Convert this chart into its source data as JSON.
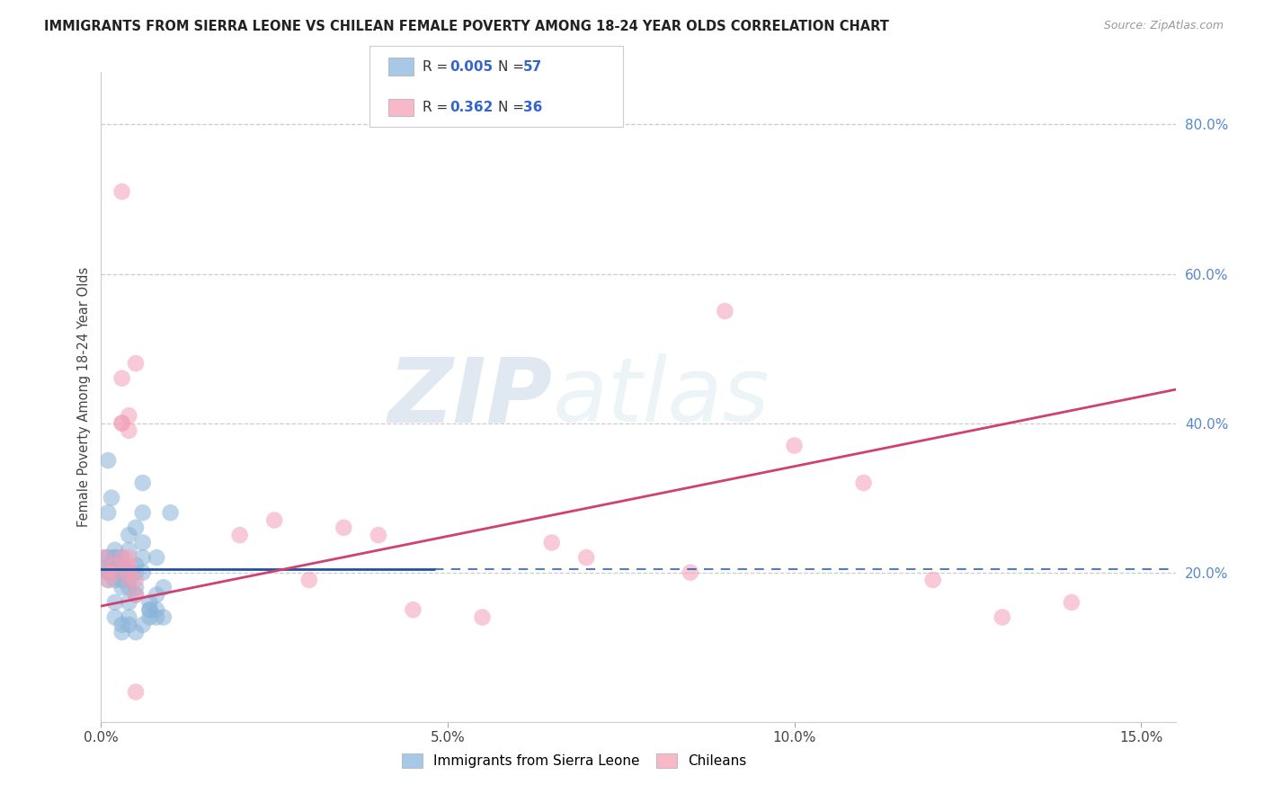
{
  "title": "IMMIGRANTS FROM SIERRA LEONE VS CHILEAN FEMALE POVERTY AMONG 18-24 YEAR OLDS CORRELATION CHART",
  "source": "Source: ZipAtlas.com",
  "ylabel": "Female Poverty Among 18-24 Year Olds",
  "yticks_right": [
    0.2,
    0.4,
    0.6,
    0.8
  ],
  "ytick_labels_right": [
    "20.0%",
    "40.0%",
    "60.0%",
    "80.0%"
  ],
  "xticks": [
    0.0,
    0.05,
    0.1,
    0.15
  ],
  "xtick_labels": [
    "0.0%",
    "5.0%",
    "10.0%",
    "15.0%"
  ],
  "xmin": 0.0,
  "xmax": 0.155,
  "ymin": 0.0,
  "ymax": 0.87,
  "blue_color": "#8ab4d8",
  "pink_color": "#f4a0b8",
  "trendline_blue_color": "#2050a0",
  "trendline_pink_color": "#d04070",
  "legend1_color": "#a8c8e8",
  "legend2_color": "#f8b8c8",
  "watermark_zip": "ZIP",
  "watermark_atlas": "atlas",
  "blue_trend_x": [
    0.0,
    0.05,
    0.155
  ],
  "blue_trend_y_solid_end": 0.05,
  "blue_trend_y": [
    0.205,
    0.205,
    0.205
  ],
  "pink_trend_x": [
    0.0,
    0.155
  ],
  "pink_trend_y": [
    0.155,
    0.445
  ],
  "blue_scatter_x": [
    0.0005,
    0.001,
    0.001,
    0.001,
    0.0015,
    0.002,
    0.002,
    0.002,
    0.002,
    0.002,
    0.003,
    0.003,
    0.003,
    0.003,
    0.003,
    0.003,
    0.004,
    0.004,
    0.004,
    0.004,
    0.004,
    0.005,
    0.005,
    0.005,
    0.005,
    0.006,
    0.006,
    0.006,
    0.006,
    0.007,
    0.007,
    0.007,
    0.008,
    0.008,
    0.008,
    0.009,
    0.009,
    0.01,
    0.001,
    0.001,
    0.001,
    0.002,
    0.002,
    0.003,
    0.003,
    0.004,
    0.004,
    0.005,
    0.005,
    0.006,
    0.006,
    0.007,
    0.008,
    0.001,
    0.002,
    0.003,
    0.004
  ],
  "blue_scatter_y": [
    0.22,
    0.35,
    0.28,
    0.22,
    0.3,
    0.23,
    0.22,
    0.2,
    0.19,
    0.21,
    0.22,
    0.21,
    0.2,
    0.2,
    0.19,
    0.18,
    0.25,
    0.2,
    0.19,
    0.23,
    0.18,
    0.2,
    0.26,
    0.17,
    0.21,
    0.28,
    0.24,
    0.22,
    0.2,
    0.16,
    0.15,
    0.14,
    0.22,
    0.15,
    0.14,
    0.18,
    0.14,
    0.28,
    0.21,
    0.2,
    0.19,
    0.22,
    0.16,
    0.21,
    0.13,
    0.16,
    0.13,
    0.18,
    0.12,
    0.32,
    0.13,
    0.15,
    0.17,
    0.2,
    0.14,
    0.12,
    0.14
  ],
  "pink_scatter_x": [
    0.0005,
    0.001,
    0.001,
    0.002,
    0.002,
    0.003,
    0.003,
    0.003,
    0.004,
    0.004,
    0.004,
    0.004,
    0.005,
    0.005,
    0.02,
    0.025,
    0.03,
    0.035,
    0.04,
    0.045,
    0.055,
    0.065,
    0.07,
    0.085,
    0.09,
    0.1,
    0.11,
    0.12,
    0.13,
    0.14,
    0.003,
    0.003,
    0.004,
    0.004,
    0.005,
    0.005
  ],
  "pink_scatter_y": [
    0.22,
    0.2,
    0.19,
    0.21,
    0.2,
    0.4,
    0.4,
    0.22,
    0.41,
    0.22,
    0.21,
    0.2,
    0.19,
    0.17,
    0.25,
    0.27,
    0.19,
    0.26,
    0.25,
    0.15,
    0.14,
    0.24,
    0.22,
    0.2,
    0.55,
    0.37,
    0.32,
    0.19,
    0.14,
    0.16,
    0.71,
    0.46,
    0.39,
    0.19,
    0.48,
    0.04
  ]
}
